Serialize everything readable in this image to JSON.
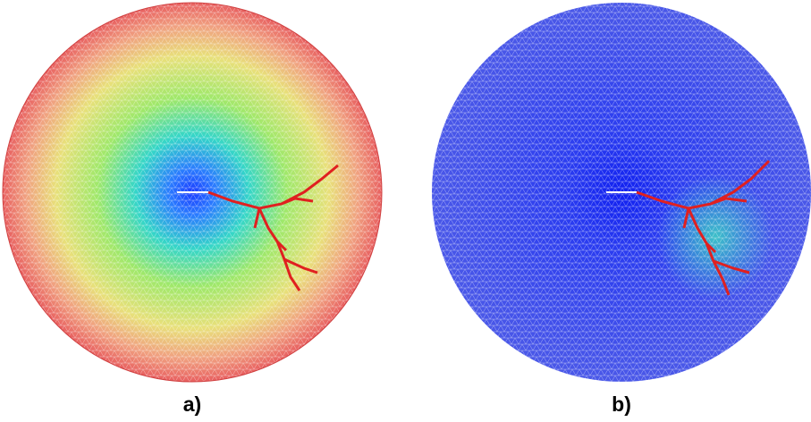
{
  "panels": [
    {
      "label": "a)"
    },
    {
      "label": "b)"
    }
  ]
}
